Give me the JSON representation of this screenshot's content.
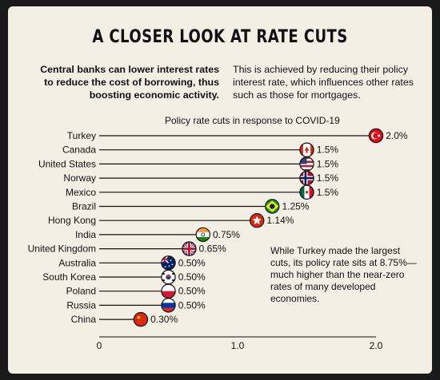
{
  "title": "A CLOSER LOOK AT RATE CUTS",
  "intro": {
    "left": "Central banks can lower interest rates to reduce the cost of borrowing, thus boosting economic activity.",
    "right": "This is achieved by reducing their policy interest rate, which influences other rates such as those for mortgages."
  },
  "annotation": "While Turkey made the largest cuts, its policy rate sits at 8.75%— much higher than the near-zero rates of many developed economies.",
  "chart_data": {
    "type": "lollipop",
    "title": "Policy rate cuts in response to COVID-19",
    "xlim": [
      0,
      2.0
    ],
    "xticks": [
      0,
      1.0,
      2.0
    ],
    "xtick_labels": [
      "0",
      "1.0",
      "2.0"
    ],
    "grid": false,
    "categories": [
      "Turkey",
      "Canada",
      "United States",
      "Norway",
      "Mexico",
      "Brazil",
      "Hong Kong",
      "India",
      "United Kingdom",
      "Australia",
      "South Korea",
      "Poland",
      "Russia",
      "China"
    ],
    "values": [
      2.0,
      1.5,
      1.5,
      1.5,
      1.5,
      1.25,
      1.14,
      0.75,
      0.65,
      0.5,
      0.5,
      0.5,
      0.5,
      0.3
    ],
    "value_labels": [
      "2.0%",
      "1.5%",
      "1.5%",
      "1.5%",
      "1.5%",
      "1.25%",
      "1.14%",
      "0.75%",
      "0.65%",
      "0.50%",
      "0.50%",
      "0.50%",
      "0.50%",
      "0.30%"
    ],
    "flag_icons": [
      "turkey-flag-icon",
      "canada-flag-icon",
      "united-states-flag-icon",
      "norway-flag-icon",
      "mexico-flag-icon",
      "brazil-flag-icon",
      "hong-kong-flag-icon",
      "india-flag-icon",
      "united-kingdom-flag-icon",
      "australia-flag-icon",
      "south-korea-flag-icon",
      "poland-flag-icon",
      "russia-flag-icon",
      "china-flag-icon"
    ]
  },
  "colors": {
    "background": "#f4efe5",
    "ink": "#111111",
    "outer": "#1a1a1a"
  }
}
